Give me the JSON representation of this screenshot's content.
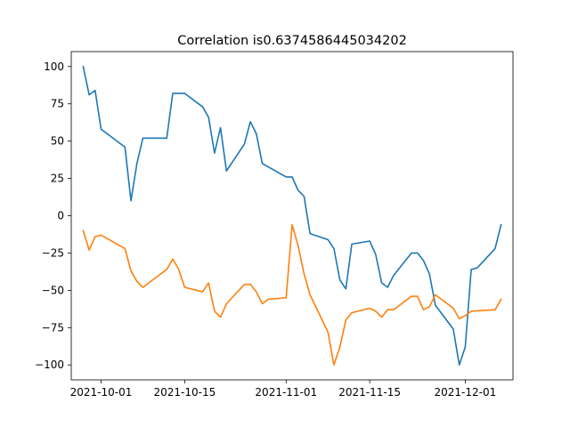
{
  "chart_data": {
    "type": "line",
    "title": "Correlation is0.6374586445034202",
    "xlabel": "",
    "ylabel": "",
    "x_axis_kind": "date",
    "xlim": [
      "2021-09-26",
      "2021-12-09"
    ],
    "ylim": [
      -110,
      110
    ],
    "x_ticks": [
      {
        "value": "2021-10-01",
        "label": "2021-10-01"
      },
      {
        "value": "2021-10-15",
        "label": "2021-10-15"
      },
      {
        "value": "2021-11-01",
        "label": "2021-11-01"
      },
      {
        "value": "2021-11-15",
        "label": "2021-11-15"
      },
      {
        "value": "2021-12-01",
        "label": "2021-12-01"
      }
    ],
    "y_ticks": [
      {
        "value": 100,
        "label": "100"
      },
      {
        "value": 75,
        "label": "75"
      },
      {
        "value": 50,
        "label": "50"
      },
      {
        "value": 25,
        "label": "25"
      },
      {
        "value": 0,
        "label": "0"
      },
      {
        "value": -25,
        "label": "−25"
      },
      {
        "value": -50,
        "label": "−50"
      },
      {
        "value": -75,
        "label": "−75"
      },
      {
        "value": -100,
        "label": "−100"
      }
    ],
    "grid": false,
    "legend": "none",
    "series": [
      {
        "color": "#1f77b4",
        "points": [
          [
            "2021-09-28",
            100
          ],
          [
            "2021-09-29",
            81
          ],
          [
            "2021-09-30",
            84
          ],
          [
            "2021-10-01",
            58
          ],
          [
            "2021-10-05",
            46
          ],
          [
            "2021-10-06",
            10
          ],
          [
            "2021-10-07",
            35
          ],
          [
            "2021-10-08",
            52
          ],
          [
            "2021-10-12",
            52
          ],
          [
            "2021-10-13",
            82
          ],
          [
            "2021-10-15",
            82
          ],
          [
            "2021-10-18",
            73
          ],
          [
            "2021-10-19",
            66
          ],
          [
            "2021-10-20",
            42
          ],
          [
            "2021-10-21",
            59
          ],
          [
            "2021-10-22",
            30
          ],
          [
            "2021-10-25",
            48
          ],
          [
            "2021-10-26",
            63
          ],
          [
            "2021-10-27",
            55
          ],
          [
            "2021-10-28",
            35
          ],
          [
            "2021-11-01",
            26
          ],
          [
            "2021-11-02",
            26
          ],
          [
            "2021-11-03",
            17
          ],
          [
            "2021-11-04",
            13
          ],
          [
            "2021-11-05",
            -12
          ],
          [
            "2021-11-08",
            -16
          ],
          [
            "2021-11-09",
            -22
          ],
          [
            "2021-11-10",
            -43
          ],
          [
            "2021-11-11",
            -49
          ],
          [
            "2021-11-12",
            -19
          ],
          [
            "2021-11-15",
            -17
          ],
          [
            "2021-11-16",
            -26
          ],
          [
            "2021-11-17",
            -45
          ],
          [
            "2021-11-18",
            -48
          ],
          [
            "2021-11-19",
            -40
          ],
          [
            "2021-11-22",
            -25
          ],
          [
            "2021-11-23",
            -25
          ],
          [
            "2021-11-24",
            -30
          ],
          [
            "2021-11-25",
            -39
          ],
          [
            "2021-11-26",
            -60
          ],
          [
            "2021-11-29",
            -76
          ],
          [
            "2021-11-30",
            -100
          ],
          [
            "2021-12-01",
            -88
          ],
          [
            "2021-12-02",
            -36
          ],
          [
            "2021-12-03",
            -35
          ],
          [
            "2021-12-06",
            -22
          ],
          [
            "2021-12-07",
            -6
          ]
        ]
      },
      {
        "color": "#ff7f0e",
        "points": [
          [
            "2021-09-28",
            -10
          ],
          [
            "2021-09-29",
            -23
          ],
          [
            "2021-09-30",
            -14
          ],
          [
            "2021-10-01",
            -13
          ],
          [
            "2021-10-05",
            -22
          ],
          [
            "2021-10-06",
            -37
          ],
          [
            "2021-10-07",
            -44
          ],
          [
            "2021-10-08",
            -48
          ],
          [
            "2021-10-12",
            -36
          ],
          [
            "2021-10-13",
            -29
          ],
          [
            "2021-10-14",
            -36
          ],
          [
            "2021-10-15",
            -48
          ],
          [
            "2021-10-18",
            -51
          ],
          [
            "2021-10-19",
            -45
          ],
          [
            "2021-10-20",
            -64
          ],
          [
            "2021-10-21",
            -68
          ],
          [
            "2021-10-22",
            -59
          ],
          [
            "2021-10-25",
            -46
          ],
          [
            "2021-10-26",
            -46
          ],
          [
            "2021-10-27",
            -51
          ],
          [
            "2021-10-28",
            -59
          ],
          [
            "2021-10-29",
            -56
          ],
          [
            "2021-11-01",
            -55
          ],
          [
            "2021-11-02",
            -6
          ],
          [
            "2021-11-03",
            -20
          ],
          [
            "2021-11-04",
            -39
          ],
          [
            "2021-11-05",
            -53
          ],
          [
            "2021-11-08",
            -78
          ],
          [
            "2021-11-09",
            -100
          ],
          [
            "2021-11-10",
            -88
          ],
          [
            "2021-11-11",
            -70
          ],
          [
            "2021-11-12",
            -65
          ],
          [
            "2021-11-15",
            -62
          ],
          [
            "2021-11-16",
            -64
          ],
          [
            "2021-11-17",
            -68
          ],
          [
            "2021-11-18",
            -63
          ],
          [
            "2021-11-19",
            -63
          ],
          [
            "2021-11-22",
            -54
          ],
          [
            "2021-11-23",
            -54
          ],
          [
            "2021-11-24",
            -63
          ],
          [
            "2021-11-25",
            -61
          ],
          [
            "2021-11-26",
            -53
          ],
          [
            "2021-11-29",
            -62
          ],
          [
            "2021-11-30",
            -69
          ],
          [
            "2021-12-01",
            -67
          ],
          [
            "2021-12-02",
            -64
          ],
          [
            "2021-12-06",
            -63
          ],
          [
            "2021-12-07",
            -56
          ]
        ]
      }
    ]
  }
}
